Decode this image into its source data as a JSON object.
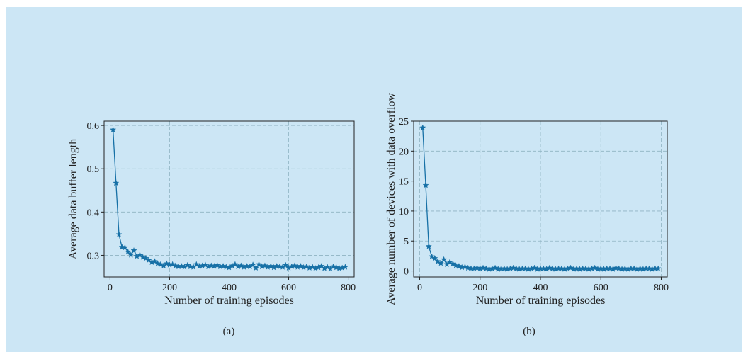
{
  "theme": {
    "background": "#cce6f5",
    "line_color": "#1670a6",
    "grid_color": "#8fb3c2"
  },
  "chart_data": [
    {
      "type": "line",
      "marker": "star",
      "caption": "(a)",
      "xlabel": "Number of training episodes",
      "ylabel": "Average data buffer length",
      "xlim": [
        -20,
        820
      ],
      "ylim": [
        0.25,
        0.61
      ],
      "xticks": [
        0,
        200,
        400,
        600,
        800
      ],
      "yticks": [
        0.3,
        0.4,
        0.5,
        0.6
      ],
      "ytick_labels": [
        "0.3",
        "0.4",
        "0.5",
        "0.6"
      ],
      "grid": true,
      "series": [
        {
          "x": [
            10,
            20,
            30,
            40,
            50,
            60,
            70,
            80,
            90,
            100,
            110,
            120,
            130,
            140,
            150,
            160,
            170,
            180,
            190,
            200,
            210,
            220,
            230,
            240,
            250,
            260,
            270,
            280,
            290,
            300,
            310,
            320,
            330,
            340,
            350,
            360,
            370,
            380,
            390,
            400,
            410,
            420,
            430,
            440,
            450,
            460,
            470,
            480,
            490,
            500,
            510,
            520,
            530,
            540,
            550,
            560,
            570,
            580,
            590,
            600,
            610,
            620,
            630,
            640,
            650,
            660,
            670,
            680,
            690,
            700,
            710,
            720,
            730,
            740,
            750,
            760,
            770,
            780,
            790
          ],
          "y": [
            0.59,
            0.467,
            0.348,
            0.319,
            0.318,
            0.308,
            0.301,
            0.311,
            0.298,
            0.301,
            0.296,
            0.293,
            0.289,
            0.284,
            0.286,
            0.281,
            0.279,
            0.276,
            0.281,
            0.278,
            0.279,
            0.276,
            0.274,
            0.275,
            0.273,
            0.277,
            0.274,
            0.273,
            0.279,
            0.275,
            0.276,
            0.278,
            0.274,
            0.276,
            0.275,
            0.277,
            0.274,
            0.275,
            0.273,
            0.272,
            0.276,
            0.279,
            0.274,
            0.276,
            0.273,
            0.275,
            0.274,
            0.278,
            0.271,
            0.279,
            0.274,
            0.276,
            0.273,
            0.275,
            0.272,
            0.275,
            0.274,
            0.273,
            0.277,
            0.271,
            0.274,
            0.276,
            0.273,
            0.275,
            0.272,
            0.274,
            0.271,
            0.273,
            0.27,
            0.272,
            0.275,
            0.27,
            0.273,
            0.269,
            0.274,
            0.272,
            0.27,
            0.271,
            0.273
          ]
        }
      ]
    },
    {
      "type": "line",
      "marker": "star",
      "caption": "(b)",
      "xlabel": "Number of training episodes",
      "ylabel": "Average number of devices with data overflow",
      "xlim": [
        -20,
        820
      ],
      "ylim": [
        -1,
        25
      ],
      "xticks": [
        0,
        200,
        400,
        600,
        800
      ],
      "yticks": [
        0,
        5,
        10,
        15,
        20,
        25
      ],
      "ytick_labels": [
        "0",
        "5",
        "10",
        "15",
        "20",
        "25"
      ],
      "grid": true,
      "series": [
        {
          "x": [
            10,
            20,
            30,
            40,
            50,
            60,
            70,
            80,
            90,
            100,
            110,
            120,
            130,
            140,
            150,
            160,
            170,
            180,
            190,
            200,
            210,
            220,
            230,
            240,
            250,
            260,
            270,
            280,
            290,
            300,
            310,
            320,
            330,
            340,
            350,
            360,
            370,
            380,
            390,
            400,
            410,
            420,
            430,
            440,
            450,
            460,
            470,
            480,
            490,
            500,
            510,
            520,
            530,
            540,
            550,
            560,
            570,
            580,
            590,
            600,
            610,
            620,
            630,
            640,
            650,
            660,
            670,
            680,
            690,
            700,
            710,
            720,
            730,
            740,
            750,
            760,
            770,
            780,
            790
          ],
          "y": [
            23.9,
            14.3,
            4.1,
            2.4,
            2.1,
            1.6,
            1.3,
            1.9,
            1.1,
            1.5,
            1.2,
            0.9,
            0.8,
            0.6,
            0.7,
            0.5,
            0.4,
            0.4,
            0.5,
            0.4,
            0.5,
            0.4,
            0.3,
            0.4,
            0.5,
            0.3,
            0.4,
            0.4,
            0.3,
            0.4,
            0.5,
            0.4,
            0.3,
            0.4,
            0.4,
            0.3,
            0.4,
            0.5,
            0.3,
            0.4,
            0.4,
            0.3,
            0.5,
            0.4,
            0.3,
            0.4,
            0.4,
            0.3,
            0.4,
            0.5,
            0.3,
            0.4,
            0.3,
            0.4,
            0.4,
            0.3,
            0.4,
            0.5,
            0.3,
            0.4,
            0.3,
            0.4,
            0.4,
            0.3,
            0.5,
            0.4,
            0.3,
            0.4,
            0.3,
            0.4,
            0.4,
            0.3,
            0.4,
            0.3,
            0.4,
            0.4,
            0.3,
            0.4,
            0.4
          ]
        }
      ]
    }
  ]
}
